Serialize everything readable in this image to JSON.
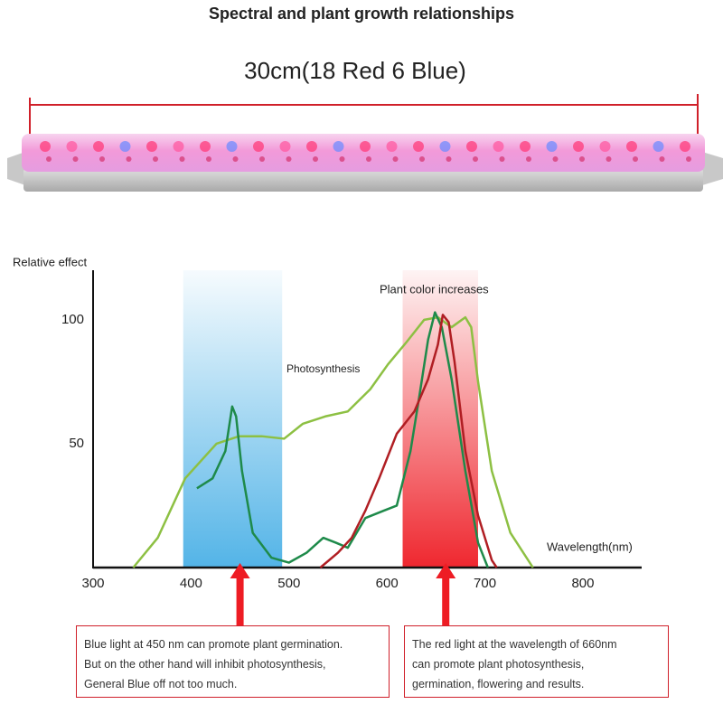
{
  "title": "Spectral and plant growth relationships",
  "product_label": "30cm(18 Red  6 Blue)",
  "chart_data": {
    "type": "line",
    "y_label": "Relative effect",
    "x_label": "Wavelength(nm)",
    "annotations": [
      "Plant color increases",
      "Photosynthesis"
    ],
    "xlim": [
      300,
      860
    ],
    "xticks": [
      300,
      400,
      500,
      600,
      700,
      800
    ],
    "ylim": [
      0,
      120
    ],
    "yticks": [
      50,
      100
    ],
    "bands": [
      {
        "x": [
          392,
          493
        ],
        "color": "#4ab0e6"
      },
      {
        "x": [
          616,
          693
        ],
        "color": "#ee1c24"
      }
    ],
    "arrows": [
      450,
      660
    ],
    "series": [
      {
        "color": "#8dc043",
        "x": [
          341,
          366,
          394,
          426,
          449,
          472,
          495,
          514,
          537,
          560,
          583,
          601,
          620,
          638,
          652,
          666,
          680,
          686,
          693,
          707,
          726,
          749
        ],
        "values": [
          0,
          12,
          36,
          50,
          53,
          53,
          52,
          58,
          61,
          63,
          72,
          82,
          91,
          100,
          101,
          97,
          101,
          97,
          75,
          39,
          14,
          0
        ]
      },
      {
        "color": "#1e8a4a",
        "x": [
          406,
          422,
          435,
          442,
          446,
          452,
          463,
          482,
          500,
          518,
          535,
          548,
          560,
          569,
          578,
          597,
          610,
          624,
          633,
          642,
          649,
          656,
          666,
          680,
          693,
          703
        ],
        "values": [
          32,
          36,
          47,
          65,
          61,
          39,
          14,
          4,
          2,
          6,
          12,
          10,
          8,
          14,
          20,
          23,
          25,
          47,
          69,
          92,
          103,
          97,
          76,
          39,
          10,
          0
        ]
      },
      {
        "color": "#b01e23",
        "x": [
          532,
          550,
          564,
          578,
          592,
          610,
          628,
          642,
          652,
          657,
          663,
          669,
          680,
          693,
          707,
          712
        ],
        "values": [
          0,
          6,
          12,
          23,
          36,
          54,
          63,
          76,
          90,
          102,
          99,
          83,
          47,
          21,
          3,
          0
        ]
      }
    ]
  },
  "notes": [
    {
      "lines": [
        "Blue light at 450 nm can promote plant germination.",
        "But on the other hand will inhibit photosynthesis,",
        "General Blue off not too much."
      ]
    },
    {
      "lines": [
        "The red light at the wavelength of 660nm",
        "can promote plant photosynthesis,",
        "germination, flowering and results."
      ]
    }
  ]
}
